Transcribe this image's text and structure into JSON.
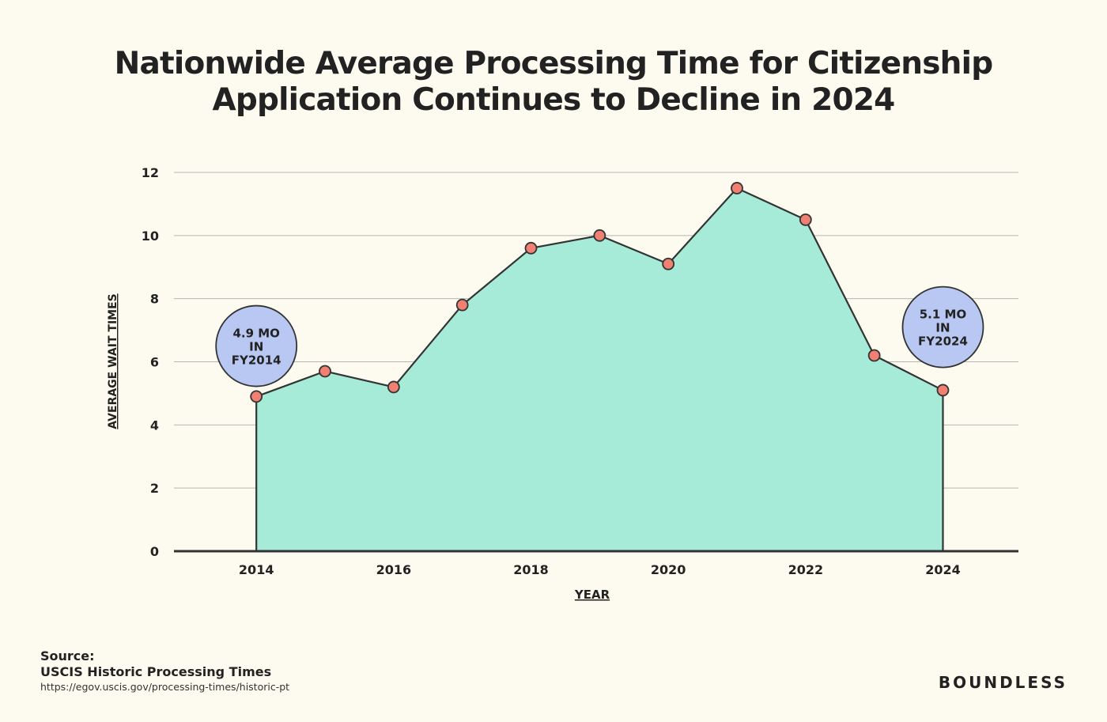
{
  "chart_data": {
    "type": "area",
    "title_lines": [
      "Nationwide Average Processing Time for Citizenship",
      "Application Continues to Decline in 2024"
    ],
    "xlabel": "YEAR",
    "ylabel": "AVERAGE WAIT TIMES",
    "x": [
      2014,
      2015,
      2016,
      2017,
      2018,
      2019,
      2020,
      2021,
      2022,
      2023,
      2024
    ],
    "values": [
      4.9,
      5.7,
      5.2,
      7.8,
      9.6,
      10.0,
      9.1,
      11.5,
      10.5,
      6.2,
      5.1
    ],
    "xticks": [
      2014,
      2016,
      2018,
      2020,
      2022,
      2024
    ],
    "yticks": [
      0,
      2,
      4,
      6,
      8,
      10,
      12
    ],
    "xlim": [
      2012.8,
      2025.1
    ],
    "ylim": [
      0,
      12
    ],
    "grid": true,
    "annotations": [
      {
        "year": 2014,
        "value": 6.5,
        "lines": [
          "4.9 MO",
          "IN",
          "FY2014"
        ]
      },
      {
        "year": 2024,
        "value": 7.1,
        "lines": [
          "5.1 MO",
          "IN",
          "FY2024"
        ]
      }
    ],
    "colors": {
      "fill": "#a6ebd8",
      "line": "#333333",
      "marker": "#f08072",
      "bubble": "#b8c8f2",
      "grid": "#b5b5b5"
    }
  },
  "source": {
    "label": "Source:",
    "name": "USCIS Historic Processing Times",
    "url": "https://egov.uscis.gov/processing-times/historic-pt"
  },
  "brand": "BOUNDLESS"
}
